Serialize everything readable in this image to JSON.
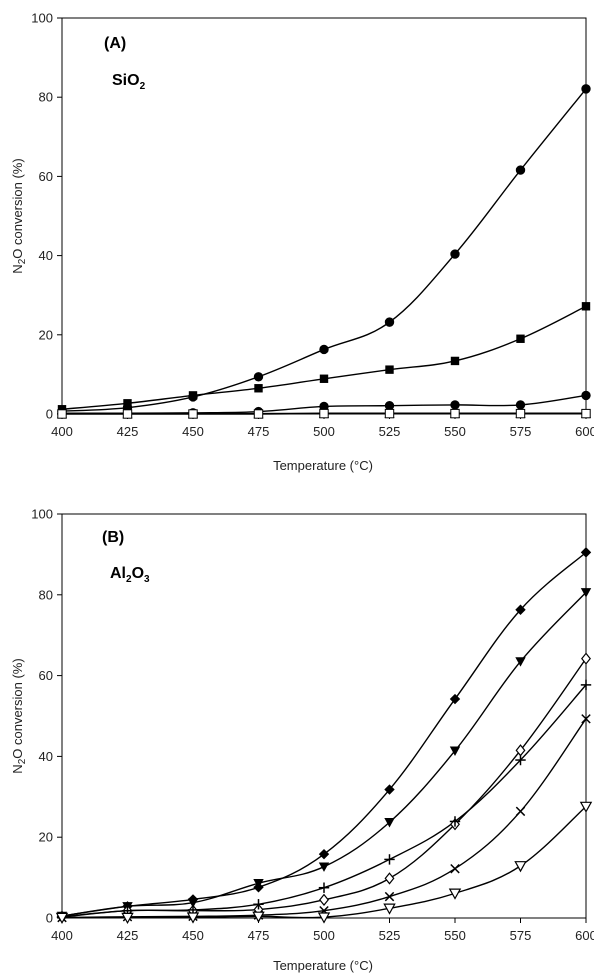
{
  "chart_data": [
    {
      "type": "line",
      "panel_label": "(A)",
      "annotation": {
        "main": "SiO",
        "sub": "2"
      },
      "xlabel": "Temperature  (°C)",
      "ylabel": {
        "pre": "N",
        "sub": "2",
        "post": "O  conversion (%)"
      },
      "x": [
        400,
        425,
        450,
        475,
        500,
        525,
        550,
        575,
        600
      ],
      "xlim": [
        400,
        600
      ],
      "ylim": [
        0,
        100
      ],
      "yticks": [
        0,
        20,
        40,
        60,
        80,
        100
      ],
      "grid": false,
      "legend": "none",
      "series": [
        {
          "marker": "circle-filled",
          "values": [
            0.7,
            1.6,
            4.3,
            9.4,
            16.3,
            23.2,
            40.4,
            61.6,
            82.1
          ]
        },
        {
          "marker": "square-filled",
          "values": [
            1.2,
            2.7,
            4.7,
            6.5,
            8.9,
            11.2,
            13.4,
            19.0,
            27.2
          ]
        },
        {
          "marker": "circle-filled",
          "values": [
            0.2,
            0.2,
            0.3,
            0.6,
            1.9,
            2.1,
            2.3,
            2.3,
            4.7
          ]
        },
        {
          "marker": "triangle-open",
          "values": [
            0.1,
            0.1,
            0.1,
            0.1,
            0.2,
            0.2,
            0.2,
            0.2,
            0.2
          ]
        },
        {
          "marker": "square-open",
          "values": [
            0.0,
            0.0,
            0.0,
            0.0,
            0.1,
            0.1,
            0.1,
            0.1,
            0.1
          ]
        }
      ]
    },
    {
      "type": "line",
      "panel_label": "(B)",
      "annotation": {
        "main": "Al",
        "sub": "2",
        "main2": "O",
        "sub2": "3"
      },
      "xlabel": "Temperature  (°C)",
      "ylabel": {
        "pre": "N",
        "sub": "2",
        "post": "O  conversion (%)"
      },
      "x": [
        400,
        425,
        450,
        475,
        500,
        525,
        550,
        575,
        600
      ],
      "xlim": [
        400,
        600
      ],
      "ylim": [
        0,
        100
      ],
      "yticks": [
        0,
        20,
        40,
        60,
        80,
        100
      ],
      "grid": false,
      "legend": "none",
      "series": [
        {
          "marker": "diamond-filled",
          "values": [
            0.5,
            2.9,
            4.6,
            7.6,
            15.8,
            31.8,
            54.2,
            76.3,
            90.5
          ]
        },
        {
          "marker": "triangle-down-filled",
          "values": [
            0.5,
            2.9,
            3.8,
            8.6,
            12.7,
            23.7,
            41.4,
            63.5,
            80.6
          ]
        },
        {
          "marker": "diamond-open",
          "values": [
            0.3,
            1.8,
            1.8,
            2.1,
            4.5,
            9.8,
            23.2,
            41.5,
            64.2
          ]
        },
        {
          "marker": "plus",
          "values": [
            0.2,
            1.8,
            2.0,
            3.4,
            7.5,
            14.5,
            23.9,
            39.1,
            57.7
          ]
        },
        {
          "marker": "cross",
          "values": [
            0.1,
            0.3,
            0.4,
            0.7,
            1.8,
            5.3,
            12.2,
            26.4,
            49.3
          ]
        },
        {
          "marker": "triangle-down-open",
          "values": [
            0.1,
            0.1,
            0.2,
            0.4,
            0.2,
            2.4,
            6.1,
            12.9,
            27.6
          ]
        }
      ]
    }
  ]
}
